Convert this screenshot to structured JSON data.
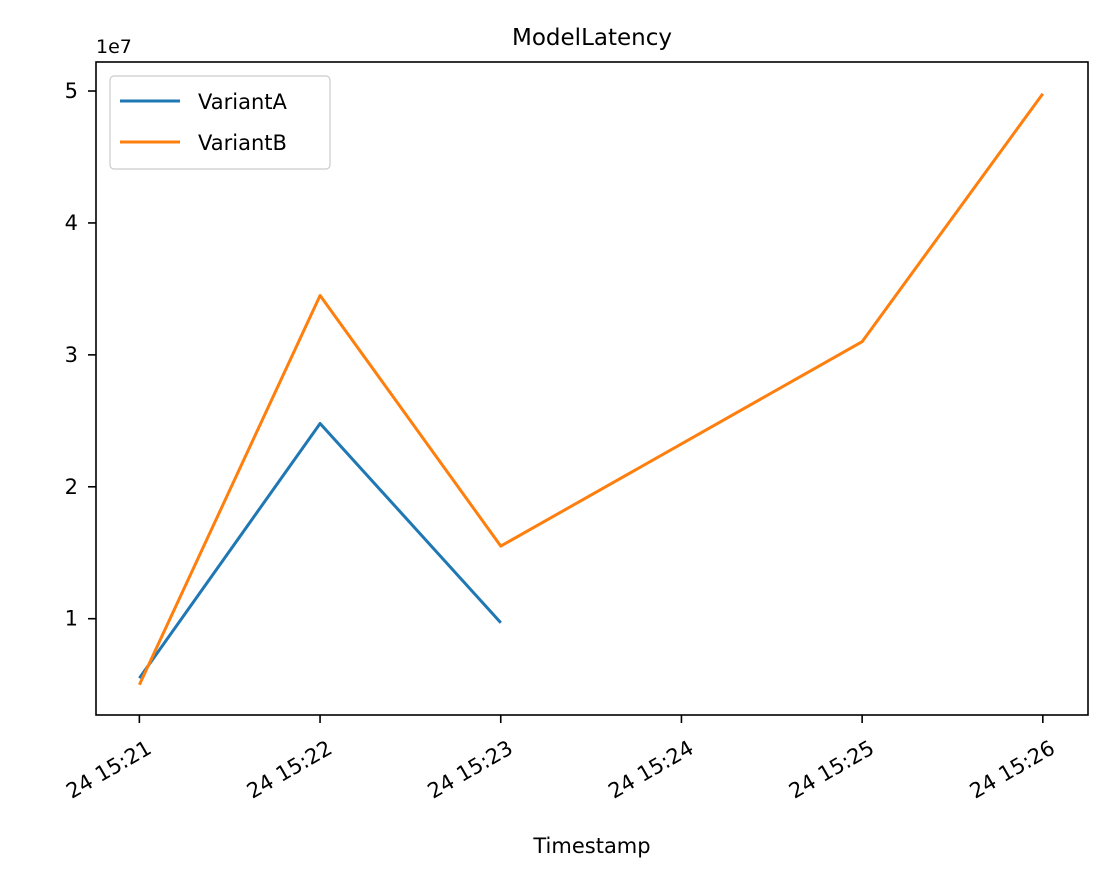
{
  "chart_data": {
    "type": "line",
    "title": "ModelLatency",
    "xlabel": "Timestamp",
    "ylabel": "",
    "y_offset_label": "1e7",
    "x_ticks": [
      "24 15:21",
      "24 15:22",
      "24 15:23",
      "24 15:24",
      "24 15:25",
      "24 15:26"
    ],
    "y_ticks": [
      1,
      2,
      3,
      4,
      5
    ],
    "xlim": [
      -0.24,
      5.25
    ],
    "ylim": [
      0.27,
      5.22
    ],
    "y_unit": "1e7",
    "grid": false,
    "legend_position": "top-left",
    "series": [
      {
        "name": "VariantA",
        "color": "#1f77b4",
        "x": [
          0,
          1,
          2
        ],
        "y": [
          0.55,
          2.48,
          0.97
        ]
      },
      {
        "name": "VariantB",
        "color": "#ff7f0e",
        "x": [
          0,
          1,
          2,
          4,
          5
        ],
        "y": [
          0.5,
          3.45,
          1.55,
          3.1,
          4.98
        ]
      }
    ]
  }
}
